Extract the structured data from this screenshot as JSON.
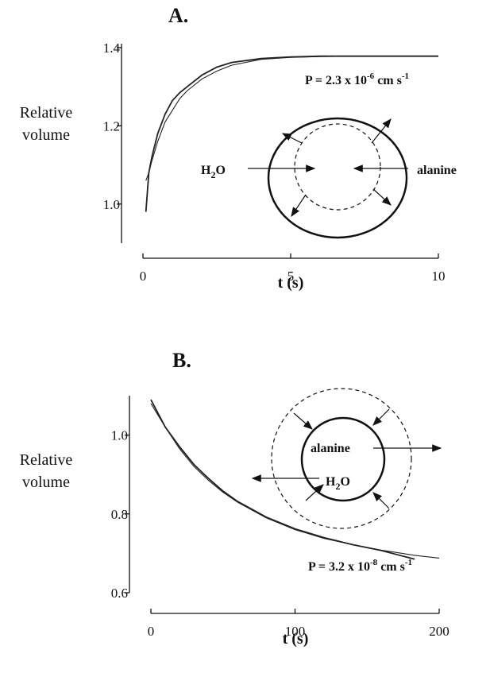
{
  "chart_data": [
    {
      "type": "line",
      "title": "A.",
      "ylabel": [
        "Relative",
        "volume"
      ],
      "xlabel": "t (s)",
      "x": [
        0.1,
        0.2,
        0.3,
        0.5,
        0.75,
        1,
        1.25,
        1.5,
        2,
        2.5,
        3,
        4,
        5,
        6,
        7,
        8,
        9,
        10
      ],
      "series": [
        {
          "color": "#222222",
          "values": [
            0.98,
            1.08,
            1.12,
            1.18,
            1.23,
            1.265,
            1.285,
            1.3,
            1.33,
            1.35,
            1.362,
            1.372,
            1.376,
            1.378,
            1.378,
            1.378,
            1.378,
            1.378
          ]
        },
        {
          "color": "#222222",
          "values": [
            1.06,
            1.08,
            1.11,
            1.16,
            1.21,
            1.24,
            1.27,
            1.29,
            1.32,
            1.34,
            1.355,
            1.37,
            1.375,
            1.377,
            1.378,
            1.378,
            1.378,
            1.378
          ]
        }
      ],
      "xlim": [
        0,
        10
      ],
      "xticks": [
        0,
        5,
        10
      ],
      "ylim": [
        0.9,
        1.41
      ],
      "yticks": [
        {
          "value": 1,
          "label": "1.0"
        },
        1.2,
        1.4
      ],
      "annotation": {
        "base": "P = 2.3 x 10",
        "exp": "-6",
        "unit": " cm s",
        "unit_exp": "-1"
      },
      "labels": {
        "solvent": [
          "H",
          "2",
          "O"
        ],
        "solute": "alanine"
      }
    },
    {
      "type": "line",
      "title": "B.",
      "ylabel": [
        "Relative",
        "volume"
      ],
      "xlabel": "t (s)",
      "x": [
        0,
        10,
        20,
        30,
        40,
        50,
        60,
        80,
        100,
        120,
        140,
        160,
        183,
        200
      ],
      "series": [
        {
          "color": "#222222",
          "values": [
            1.09,
            1.02,
            0.97,
            0.925,
            0.89,
            0.858,
            0.832,
            0.792,
            0.762,
            0.74,
            0.722,
            0.707,
            0.685,
            null
          ]
        },
        {
          "color": "#222222",
          "values": [
            1.08,
            1.02,
            0.965,
            0.92,
            0.885,
            0.855,
            0.83,
            0.79,
            0.76,
            0.738,
            0.722,
            0.708,
            0.695,
            0.688
          ]
        }
      ],
      "xlim": [
        0,
        200
      ],
      "xticks": [
        0,
        100,
        200
      ],
      "ylim": [
        0.6,
        1.1
      ],
      "yticks": [
        0.6,
        0.8,
        {
          "value": 1,
          "label": "1.0"
        }
      ],
      "annotation": {
        "base": "P = 3.2 x 10",
        "exp": "-8",
        "unit": " cm s",
        "unit_exp": "-1"
      },
      "labels": {
        "solvent": [
          "H",
          "2",
          "O"
        ],
        "solute": "alanine"
      }
    }
  ]
}
